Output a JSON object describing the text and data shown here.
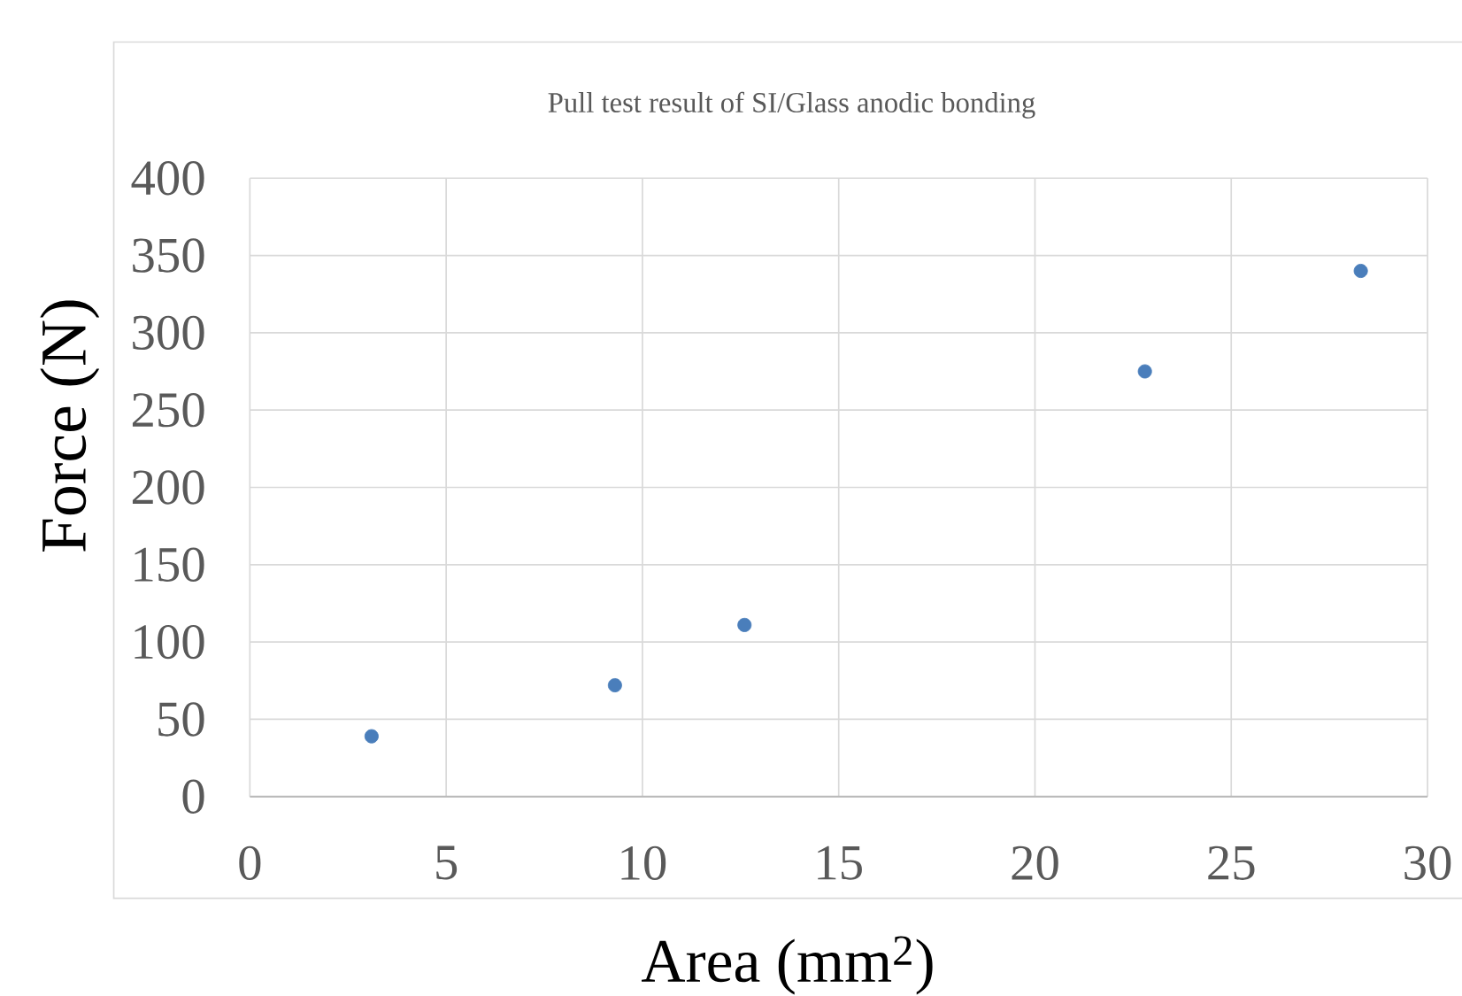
{
  "chart_data": {
    "type": "scatter",
    "title": "Pull test result of SI/Glass anodic bonding",
    "xlabel": "Area (mm$^{2}$)",
    "ylabel": "Force (N)",
    "x": [
      3.1,
      9.3,
      12.6,
      22.8,
      28.3
    ],
    "series": [
      {
        "color": "#4a7ebb",
        "values": [
          39,
          72,
          111,
          275,
          340
        ]
      }
    ],
    "xlim": [
      0,
      30
    ],
    "xticks": [
      0,
      5,
      10,
      15,
      20,
      25,
      30
    ],
    "ylim": [
      0,
      400
    ],
    "yticks": [
      0,
      50,
      100,
      150,
      200,
      250,
      300,
      350,
      400
    ],
    "grid": true,
    "marker": "circle"
  }
}
